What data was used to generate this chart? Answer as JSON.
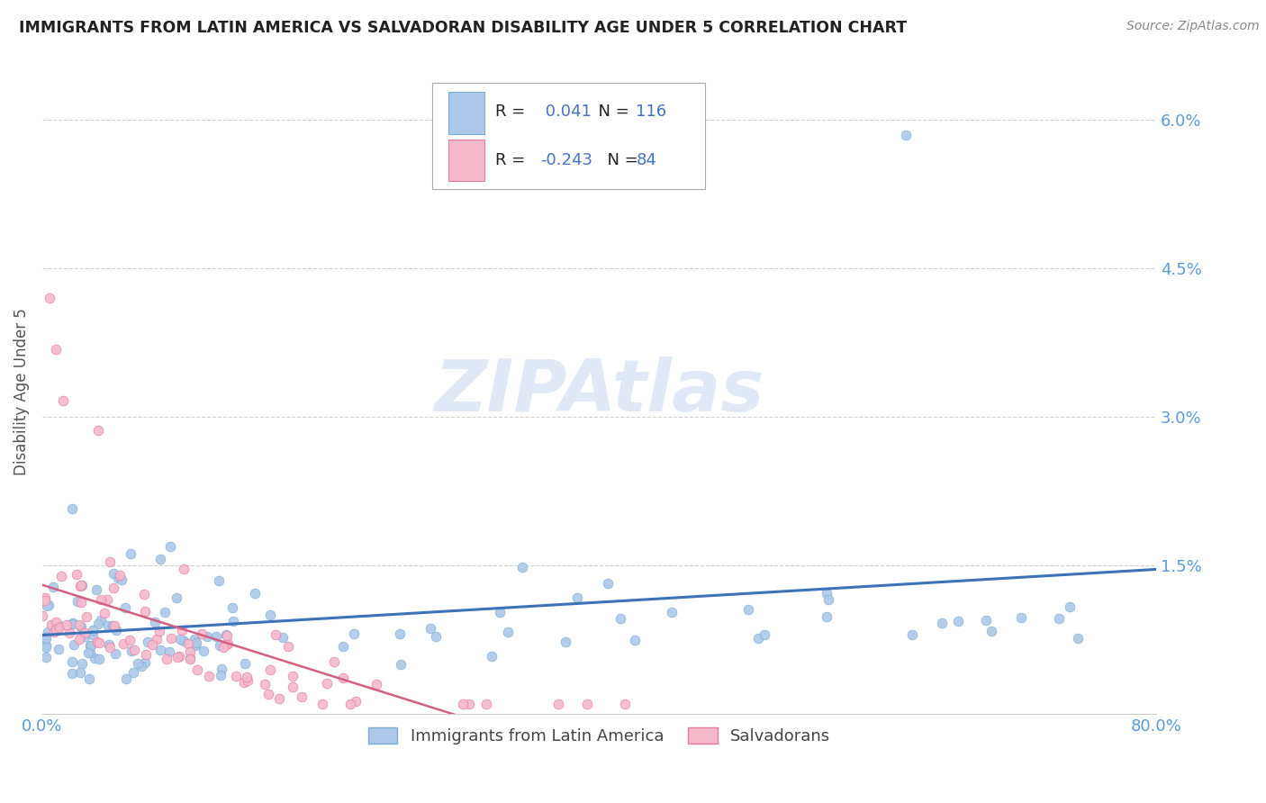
{
  "title": "IMMIGRANTS FROM LATIN AMERICA VS SALVADORAN DISABILITY AGE UNDER 5 CORRELATION CHART",
  "source": "Source: ZipAtlas.com",
  "ylabel": "Disability Age Under 5",
  "xlim": [
    0.0,
    0.8
  ],
  "ylim": [
    0.0,
    0.065
  ],
  "yticks": [
    0.015,
    0.03,
    0.045,
    0.06
  ],
  "ytick_labels": [
    "1.5%",
    "3.0%",
    "4.5%",
    "6.0%"
  ],
  "xtick_labels_show": [
    "0.0%",
    "80.0%"
  ],
  "xtick_positions_show": [
    0.0,
    0.8
  ],
  "series1_label": "Immigrants from Latin America",
  "series1_R": 0.041,
  "series1_N": 116,
  "series1_color": "#adc8e8",
  "series1_edge": "#7aafd4",
  "series2_label": "Salvadorans",
  "series2_R": -0.243,
  "series2_N": 84,
  "series2_color": "#f5b8cb",
  "series2_edge": "#e87aa0",
  "trend1_color": "#3b72b8",
  "trend2_color": "#d46080",
  "background_color": "#ffffff",
  "grid_color": "#cccccc",
  "title_color": "#222222",
  "axis_tick_color": "#5b9bd5",
  "watermark": "ZIPAtlas",
  "legend_value_color": "#4472c4"
}
